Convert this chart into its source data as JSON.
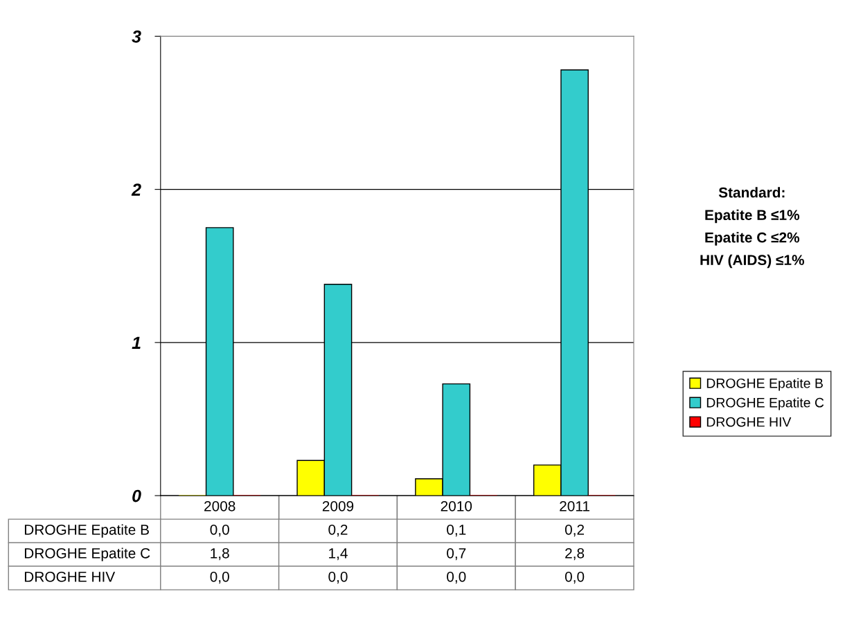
{
  "chart_data": {
    "type": "bar",
    "categories": [
      "2008",
      "2009",
      "2010",
      "2011"
    ],
    "series": [
      {
        "name": "DROGHE Epatite B",
        "color": "#ffff00",
        "values": [
          0,
          0.23,
          0.11,
          0.2
        ],
        "value_labels": [
          "0,0",
          "0,2",
          "0,1",
          "0,2"
        ]
      },
      {
        "name": "DROGHE Epatite C",
        "color": "#33cccc",
        "values": [
          1.75,
          1.38,
          0.73,
          2.78
        ],
        "value_labels": [
          "1,8",
          "1,4",
          "0,7",
          "2,8"
        ]
      },
      {
        "name": "DROGHE HIV",
        "color": "#ff0000",
        "values": [
          0,
          0,
          0,
          0
        ],
        "value_labels": [
          "0,0",
          "0,0",
          "0,0",
          "0,0"
        ]
      }
    ],
    "ylim": [
      0,
      3
    ],
    "yticks": [
      0,
      1,
      2,
      3
    ],
    "grid": "y",
    "legend": "right",
    "annotations": [
      "Standard:",
      "Epatite B ≤1%",
      "Epatite C ≤2%",
      "HIV (AIDS) ≤1%"
    ]
  }
}
